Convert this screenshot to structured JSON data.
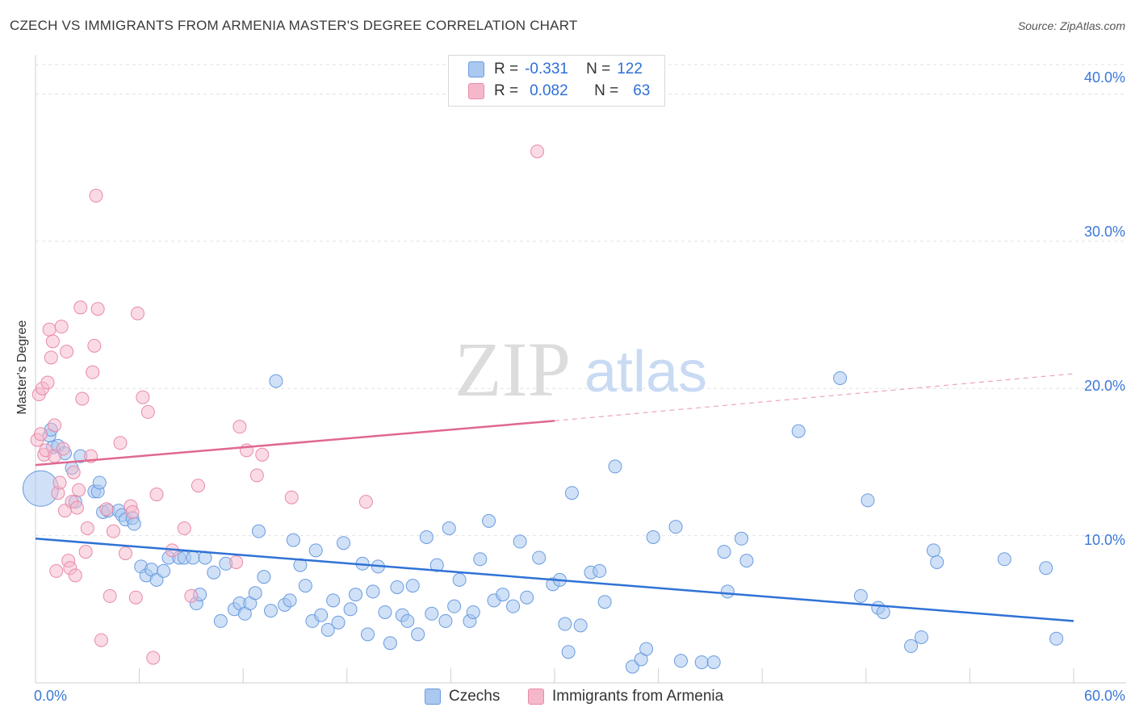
{
  "title": "CZECH VS IMMIGRANTS FROM ARMENIA MASTER'S DEGREE CORRELATION CHART",
  "source": "Source: ZipAtlas.com",
  "watermark": {
    "zip": "ZIP",
    "atlas": "atlas"
  },
  "colors": {
    "blue_fill": "#aac8f0",
    "blue_stroke": "#6a9be0",
    "blue_line": "#2f72d6",
    "pink_fill": "#f5b8cb",
    "pink_stroke": "#e88aa8",
    "pink_line": "#e0688f",
    "tick_text": "#3b78d8",
    "grid": "#e2e2e2"
  },
  "legend": {
    "rows": [
      {
        "r_label": "R =",
        "r_value": "-0.331",
        "n_label": "N =",
        "n_value": "122"
      },
      {
        "r_label": "R =",
        "r_value": "0.082",
        "n_label": "N =",
        "n_value": "63"
      }
    ]
  },
  "bottom_legend": {
    "series1": "Czechs",
    "series2": "Immigrants from Armenia"
  },
  "y_ticks": [
    "40.0%",
    "30.0%",
    "20.0%",
    "10.0%"
  ],
  "x_ticks": {
    "left": "0.0%",
    "right": "60.0%"
  },
  "chart_data": {
    "type": "scatter",
    "title": "CZECH VS IMMIGRANTS FROM ARMENIA MASTER'S DEGREE CORRELATION CHART",
    "xlabel": "",
    "ylabel": "Master's Degree",
    "xlim": [
      0,
      60
    ],
    "ylim": [
      0,
      42
    ],
    "grid": true,
    "series": [
      {
        "name": "Czechs",
        "r": -0.331,
        "n": 122,
        "trend": {
          "x": [
            0,
            60
          ],
          "y": [
            9.8,
            4.2
          ]
        },
        "points": [
          [
            0.3,
            13.2
          ],
          [
            0.8,
            16.8
          ],
          [
            0.9,
            17.2
          ],
          [
            1.0,
            16.0
          ],
          [
            1.3,
            16.1
          ],
          [
            1.7,
            15.6
          ],
          [
            2.1,
            14.6
          ],
          [
            2.3,
            12.3
          ],
          [
            2.6,
            15.4
          ],
          [
            3.4,
            13.0
          ],
          [
            3.6,
            13.0
          ],
          [
            3.7,
            13.6
          ],
          [
            3.9,
            11.6
          ],
          [
            4.2,
            11.7
          ],
          [
            4.8,
            11.7
          ],
          [
            5.0,
            11.4
          ],
          [
            5.2,
            11.1
          ],
          [
            5.6,
            11.2
          ],
          [
            5.7,
            10.8
          ],
          [
            6.1,
            7.9
          ],
          [
            6.4,
            7.3
          ],
          [
            6.7,
            7.7
          ],
          [
            7.0,
            7.0
          ],
          [
            7.4,
            7.6
          ],
          [
            7.7,
            8.5
          ],
          [
            8.3,
            8.5
          ],
          [
            8.6,
            8.5
          ],
          [
            9.1,
            8.5
          ],
          [
            9.3,
            5.4
          ],
          [
            9.5,
            6.0
          ],
          [
            9.8,
            8.5
          ],
          [
            10.3,
            7.5
          ],
          [
            10.7,
            4.2
          ],
          [
            11.0,
            8.1
          ],
          [
            11.5,
            5.0
          ],
          [
            11.8,
            5.4
          ],
          [
            12.1,
            4.7
          ],
          [
            12.4,
            5.4
          ],
          [
            12.7,
            6.1
          ],
          [
            12.9,
            10.3
          ],
          [
            13.2,
            7.2
          ],
          [
            13.6,
            4.9
          ],
          [
            13.9,
            20.5
          ],
          [
            14.4,
            5.3
          ],
          [
            14.7,
            5.6
          ],
          [
            14.9,
            9.7
          ],
          [
            15.3,
            8.0
          ],
          [
            15.6,
            6.6
          ],
          [
            16.0,
            4.2
          ],
          [
            16.2,
            9.0
          ],
          [
            16.5,
            4.6
          ],
          [
            16.9,
            3.6
          ],
          [
            17.2,
            5.6
          ],
          [
            17.5,
            4.1
          ],
          [
            17.8,
            9.5
          ],
          [
            18.2,
            5.0
          ],
          [
            18.5,
            6.0
          ],
          [
            18.9,
            8.1
          ],
          [
            19.2,
            3.3
          ],
          [
            19.5,
            6.2
          ],
          [
            19.8,
            7.9
          ],
          [
            20.2,
            4.8
          ],
          [
            20.5,
            2.7
          ],
          [
            20.9,
            6.5
          ],
          [
            21.2,
            4.6
          ],
          [
            21.5,
            4.2
          ],
          [
            21.8,
            6.6
          ],
          [
            22.1,
            3.3
          ],
          [
            22.6,
            9.9
          ],
          [
            22.9,
            4.7
          ],
          [
            23.2,
            8.0
          ],
          [
            23.7,
            4.2
          ],
          [
            23.9,
            10.5
          ],
          [
            24.2,
            5.2
          ],
          [
            24.5,
            7.0
          ],
          [
            25.1,
            4.2
          ],
          [
            25.3,
            4.8
          ],
          [
            25.7,
            8.4
          ],
          [
            26.2,
            11.0
          ],
          [
            26.5,
            5.6
          ],
          [
            27.0,
            6.0
          ],
          [
            27.6,
            5.2
          ],
          [
            28.0,
            9.6
          ],
          [
            28.4,
            5.8
          ],
          [
            29.1,
            8.5
          ],
          [
            29.9,
            6.7
          ],
          [
            30.3,
            7.0
          ],
          [
            30.6,
            4.0
          ],
          [
            30.8,
            2.1
          ],
          [
            31.0,
            12.9
          ],
          [
            31.5,
            3.9
          ],
          [
            32.1,
            7.5
          ],
          [
            32.6,
            7.6
          ],
          [
            32.9,
            5.5
          ],
          [
            33.5,
            14.7
          ],
          [
            34.5,
            1.1
          ],
          [
            35.0,
            1.6
          ],
          [
            35.3,
            2.3
          ],
          [
            35.7,
            9.9
          ],
          [
            37.0,
            10.6
          ],
          [
            37.3,
            1.5
          ],
          [
            38.5,
            1.4
          ],
          [
            39.2,
            1.4
          ],
          [
            39.8,
            8.9
          ],
          [
            40.0,
            6.2
          ],
          [
            40.8,
            9.8
          ],
          [
            41.1,
            8.3
          ],
          [
            44.1,
            17.1
          ],
          [
            46.5,
            20.7
          ],
          [
            47.7,
            5.9
          ],
          [
            48.1,
            12.4
          ],
          [
            48.7,
            5.1
          ],
          [
            49.0,
            4.8
          ],
          [
            50.6,
            2.5
          ],
          [
            51.2,
            3.1
          ],
          [
            51.9,
            9.0
          ],
          [
            52.1,
            8.2
          ],
          [
            56.0,
            8.4
          ],
          [
            58.4,
            7.8
          ],
          [
            59.0,
            3.0
          ]
        ]
      },
      {
        "name": "Immigrants from Armenia",
        "r": 0.082,
        "n": 63,
        "trend": {
          "x": [
            0,
            30
          ],
          "y": [
            14.8,
            17.8
          ],
          "dashed_to": {
            "x": 60,
            "y": 21.0
          }
        },
        "points": [
          [
            0.1,
            16.5
          ],
          [
            0.2,
            19.6
          ],
          [
            0.3,
            16.9
          ],
          [
            0.4,
            20.0
          ],
          [
            0.5,
            15.5
          ],
          [
            0.6,
            15.8
          ],
          [
            0.7,
            20.4
          ],
          [
            0.8,
            24.0
          ],
          [
            0.9,
            22.1
          ],
          [
            1.0,
            23.2
          ],
          [
            1.1,
            17.5
          ],
          [
            1.1,
            15.4
          ],
          [
            1.2,
            7.6
          ],
          [
            1.3,
            12.9
          ],
          [
            1.4,
            13.6
          ],
          [
            1.5,
            24.2
          ],
          [
            1.6,
            15.9
          ],
          [
            1.7,
            11.7
          ],
          [
            1.8,
            22.5
          ],
          [
            1.9,
            8.3
          ],
          [
            2.0,
            7.8
          ],
          [
            2.1,
            12.3
          ],
          [
            2.2,
            14.3
          ],
          [
            2.3,
            7.3
          ],
          [
            2.4,
            11.9
          ],
          [
            2.5,
            13.1
          ],
          [
            2.6,
            25.5
          ],
          [
            2.7,
            19.3
          ],
          [
            2.9,
            8.9
          ],
          [
            3.0,
            10.5
          ],
          [
            3.2,
            15.4
          ],
          [
            3.3,
            21.1
          ],
          [
            3.4,
            22.9
          ],
          [
            3.5,
            33.1
          ],
          [
            3.6,
            25.4
          ],
          [
            3.8,
            2.9
          ],
          [
            4.1,
            11.8
          ],
          [
            4.3,
            5.9
          ],
          [
            4.5,
            10.3
          ],
          [
            4.9,
            16.3
          ],
          [
            5.2,
            8.8
          ],
          [
            5.5,
            12.0
          ],
          [
            5.6,
            11.6
          ],
          [
            5.8,
            5.8
          ],
          [
            5.9,
            25.1
          ],
          [
            6.2,
            19.4
          ],
          [
            6.5,
            18.4
          ],
          [
            6.8,
            1.7
          ],
          [
            7.0,
            12.8
          ],
          [
            7.9,
            9.0
          ],
          [
            8.6,
            10.5
          ],
          [
            9.0,
            5.9
          ],
          [
            9.4,
            13.4
          ],
          [
            11.6,
            8.2
          ],
          [
            11.8,
            17.4
          ],
          [
            12.2,
            15.8
          ],
          [
            12.8,
            14.1
          ],
          [
            13.1,
            15.5
          ],
          [
            14.8,
            12.6
          ],
          [
            19.1,
            12.3
          ],
          [
            29.0,
            36.1
          ]
        ]
      }
    ]
  }
}
